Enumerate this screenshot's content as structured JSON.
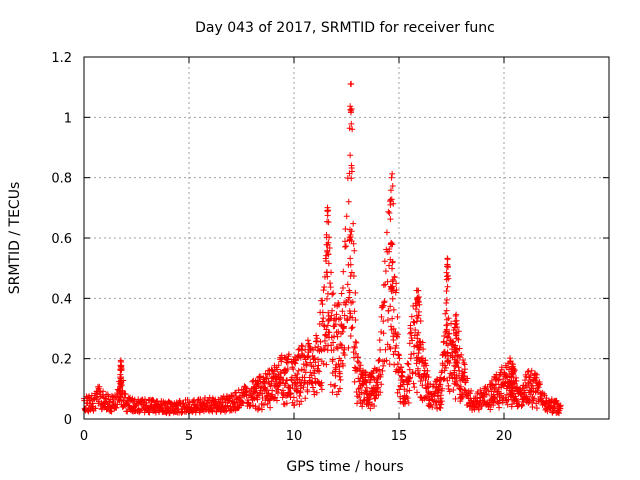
{
  "chart_data": {
    "type": "scatter",
    "title": "Day 043 of 2017, SRMTID for receiver func",
    "xlabel": "GPS time / hours",
    "ylabel": "SRMTID / TECUs",
    "xlim": [
      0,
      25
    ],
    "ylim": [
      0,
      1.2
    ],
    "x_ticks": [
      0,
      5,
      10,
      15,
      20
    ],
    "x_tick_labels": [
      "0",
      "5",
      "10",
      "15",
      "20"
    ],
    "y_ticks": [
      0,
      0.2,
      0.4,
      0.6,
      0.8,
      1.0,
      1.2
    ],
    "y_tick_labels": [
      "0",
      "0.2",
      "0.4",
      "0.6",
      "0.8",
      "1",
      "1.2"
    ],
    "grid": true,
    "marker": "+",
    "marker_color": "#ff0000",
    "x_range": [
      0.0,
      22.7
    ],
    "profile": [
      [
        0.0,
        0.05
      ],
      [
        0.5,
        0.06
      ],
      [
        0.7,
        0.08
      ],
      [
        1.0,
        0.06
      ],
      [
        1.5,
        0.05
      ],
      [
        1.8,
        0.12
      ],
      [
        2.0,
        0.05
      ],
      [
        3.0,
        0.045
      ],
      [
        4.0,
        0.04
      ],
      [
        5.0,
        0.045
      ],
      [
        6.0,
        0.05
      ],
      [
        7.0,
        0.055
      ],
      [
        7.5,
        0.07
      ],
      [
        8.0,
        0.09
      ],
      [
        8.5,
        0.1
      ],
      [
        9.0,
        0.12
      ],
      [
        9.5,
        0.15
      ],
      [
        10.0,
        0.14
      ],
      [
        10.5,
        0.18
      ],
      [
        11.0,
        0.17
      ],
      [
        11.5,
        0.35
      ],
      [
        11.6,
        0.5
      ],
      [
        11.8,
        0.3
      ],
      [
        12.0,
        0.25
      ],
      [
        12.3,
        0.3
      ],
      [
        12.6,
        0.6
      ],
      [
        12.8,
        0.5
      ],
      [
        13.0,
        0.15
      ],
      [
        13.5,
        0.1
      ],
      [
        14.0,
        0.12
      ],
      [
        14.3,
        0.35
      ],
      [
        14.6,
        0.55
      ],
      [
        14.8,
        0.4
      ],
      [
        15.0,
        0.15
      ],
      [
        15.3,
        0.08
      ],
      [
        15.6,
        0.25
      ],
      [
        15.9,
        0.3
      ],
      [
        16.2,
        0.15
      ],
      [
        16.5,
        0.08
      ],
      [
        17.0,
        0.1
      ],
      [
        17.3,
        0.3
      ],
      [
        17.5,
        0.2
      ],
      [
        17.8,
        0.22
      ],
      [
        18.2,
        0.1
      ],
      [
        18.5,
        0.06
      ],
      [
        19.0,
        0.07
      ],
      [
        19.5,
        0.1
      ],
      [
        20.0,
        0.12
      ],
      [
        20.3,
        0.14
      ],
      [
        20.7,
        0.08
      ],
      [
        21.2,
        0.12
      ],
      [
        21.6,
        0.1
      ],
      [
        22.0,
        0.05
      ],
      [
        22.7,
        0.04
      ]
    ],
    "spikes": [
      {
        "x": 1.75,
        "width": 0.06,
        "peak": 0.2
      },
      {
        "x": 11.6,
        "width": 0.12,
        "peak": 0.73
      },
      {
        "x": 12.7,
        "width": 0.12,
        "peak": 1.16
      },
      {
        "x": 14.65,
        "width": 0.14,
        "peak": 0.85
      },
      {
        "x": 15.9,
        "width": 0.12,
        "peak": 0.45
      },
      {
        "x": 17.3,
        "width": 0.08,
        "peak": 0.56
      },
      {
        "x": 17.7,
        "width": 0.12,
        "peak": 0.36
      },
      {
        "x": 20.4,
        "width": 0.12,
        "peak": 0.19
      }
    ],
    "point_count": 1400
  }
}
